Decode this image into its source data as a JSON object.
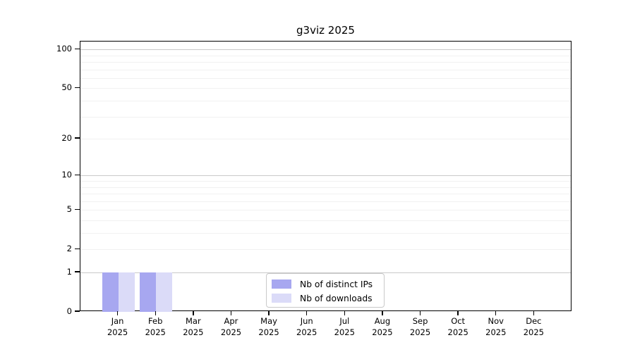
{
  "chart_data": {
    "type": "bar",
    "title": "g3viz 2025",
    "categories": [
      {
        "month": "Jan",
        "year": "2025"
      },
      {
        "month": "Feb",
        "year": "2025"
      },
      {
        "month": "Mar",
        "year": "2025"
      },
      {
        "month": "Apr",
        "year": "2025"
      },
      {
        "month": "May",
        "year": "2025"
      },
      {
        "month": "Jun",
        "year": "2025"
      },
      {
        "month": "Jul",
        "year": "2025"
      },
      {
        "month": "Aug",
        "year": "2025"
      },
      {
        "month": "Sep",
        "year": "2025"
      },
      {
        "month": "Oct",
        "year": "2025"
      },
      {
        "month": "Nov",
        "year": "2025"
      },
      {
        "month": "Dec",
        "year": "2025"
      }
    ],
    "series": [
      {
        "name": "Nb of distinct IPs",
        "color": "#a7a7f0",
        "values": [
          1,
          1,
          0,
          0,
          0,
          0,
          0,
          0,
          0,
          0,
          0,
          0
        ]
      },
      {
        "name": "Nb of downloads",
        "color": "#dbdbf8",
        "values": [
          1,
          1,
          0,
          0,
          0,
          0,
          0,
          0,
          0,
          0,
          0,
          0
        ]
      }
    ],
    "y_axis": {
      "scale": "log10(value+1)",
      "tick_values": [
        0,
        1,
        2,
        5,
        10,
        20,
        50,
        100
      ],
      "major_gridline_values": [
        1,
        10,
        100
      ],
      "minor_gridline_values": [
        2,
        3,
        4,
        5,
        6,
        7,
        8,
        9,
        20,
        30,
        40,
        50,
        60,
        70,
        80,
        90
      ],
      "range": [
        0,
        117
      ]
    },
    "xlabel": "",
    "ylabel": "",
    "grid": true,
    "legend_position": "inside-bottom-center",
    "colors": {
      "grid_minor": "#f1f1f1",
      "grid_major": "#c9c9c9",
      "axis": "#000000",
      "legend_border": "#c9c9c9",
      "background": "#ffffff"
    }
  }
}
